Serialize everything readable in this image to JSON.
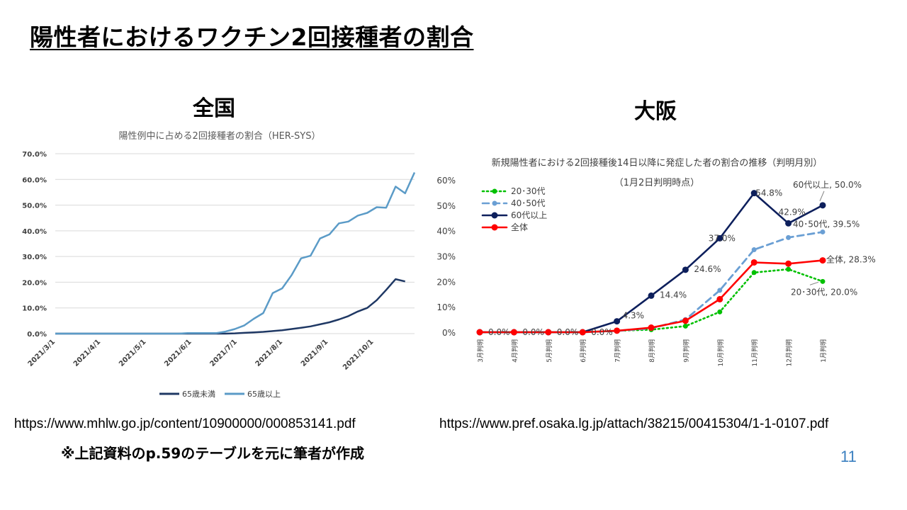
{
  "slide": {
    "title": "陽性者におけるワクチン2回接種者の割合",
    "left_heading": "全国",
    "right_heading": "大阪",
    "left_url": "https://www.mhlw.go.jp/content/10900000/000853141.pdf",
    "right_url": "https://www.pref.osaka.lg.jp/attach/38215/00415304/1-1-0107.pdf",
    "note": "※上記資料のp.59のテーブルを元に筆者が作成",
    "page_number": "11"
  },
  "chart_data": [
    {
      "type": "line",
      "title": "陽性例中に占める2回接種者の割合（HER-SYS）",
      "y_ticks": [
        "70.0%",
        "60.0%",
        "50.0%",
        "40.0%",
        "30.0%",
        "20.0%",
        "10.0%",
        "0.0%"
      ],
      "ylim": [
        0,
        70
      ],
      "x_ticks": [
        "2021/3/1",
        "2021/4/1",
        "2021/5/1",
        "2021/6/1",
        "2021/7/1",
        "2021/8/1",
        "2021/9/1",
        "2021/10/1"
      ],
      "legend_position": "bottom",
      "series": [
        {
          "name": "65歳未満",
          "color": "#1f3864",
          "values": [
            0,
            0,
            0,
            0,
            0,
            0,
            0,
            0,
            0,
            0,
            0,
            0,
            0,
            0,
            0,
            0,
            0,
            0,
            0,
            0.1,
            0.3,
            0.5,
            0.7,
            1.0,
            1.3,
            1.8,
            2.3,
            2.8,
            3.6,
            4.4,
            5.5,
            6.8,
            8.6,
            10.0,
            13.0,
            17.0,
            21.2,
            20.3
          ]
        },
        {
          "name": "65歳以上",
          "color": "#5b9bc7",
          "values": [
            0,
            0,
            0,
            0,
            0,
            0,
            0,
            0,
            0,
            0,
            0,
            0,
            0,
            0,
            0.2,
            0.2,
            0.2,
            0.2,
            0.8,
            1.8,
            3.2,
            5.8,
            8.0,
            15.8,
            17.6,
            22.8,
            29.3,
            30.3,
            37.0,
            38.6,
            42.9,
            43.6,
            45.9,
            47.0,
            49.2,
            49.0,
            57.2,
            54.6,
            62.7
          ]
        }
      ]
    },
    {
      "type": "line",
      "title": "新規陽性者における2回接種後14日以降に発症した者の割合の推移（判明月別）",
      "subtitle": "（1月2日判明時点）",
      "y_ticks": [
        "60%",
        "50%",
        "40%",
        "30%",
        "20%",
        "10%",
        "0%"
      ],
      "ylim": [
        0,
        60
      ],
      "categories": [
        "3月判明",
        "4月判明",
        "5月判明",
        "6月判明",
        "7月判明",
        "8月判明",
        "9月判明",
        "10月判明",
        "11月判明",
        "12月判明",
        "1月判明"
      ],
      "legend_position": "top-left",
      "series": [
        {
          "name": "20･30代",
          "color": "#00c000",
          "dash": "dot",
          "values": [
            0,
            0,
            0,
            0,
            0.6,
            1.0,
            2.4,
            8.0,
            23.5,
            24.8,
            20.0
          ]
        },
        {
          "name": "40･50代",
          "color": "#6a9fd4",
          "dash": "dash",
          "values": [
            0,
            0,
            0,
            0,
            0.5,
            1.5,
            5.0,
            16.5,
            32.5,
            37.3,
            39.5
          ]
        },
        {
          "name": "60代以上",
          "color": "#0d1f5c",
          "dash": "solid",
          "values": [
            0,
            0,
            0,
            0,
            4.3,
            14.4,
            24.6,
            37.0,
            54.8,
            42.9,
            50.0
          ]
        },
        {
          "name": "全体",
          "color": "#ff0000",
          "dash": "solid",
          "values": [
            0,
            0,
            0,
            0,
            0.6,
            1.8,
            4.5,
            13.0,
            27.5,
            27.0,
            28.3
          ]
        }
      ],
      "data_labels": [
        "0.0%",
        "0.0%",
        "0.0%",
        "0.0%",
        "4.3%",
        "14.4%",
        "24.6%",
        "37.0%",
        "54.8%",
        "42.9%",
        "60代以上, 50.0%",
        "40･50代, 39.5%",
        "全体, 28.3%",
        "20･30代, 20.0%"
      ]
    }
  ]
}
